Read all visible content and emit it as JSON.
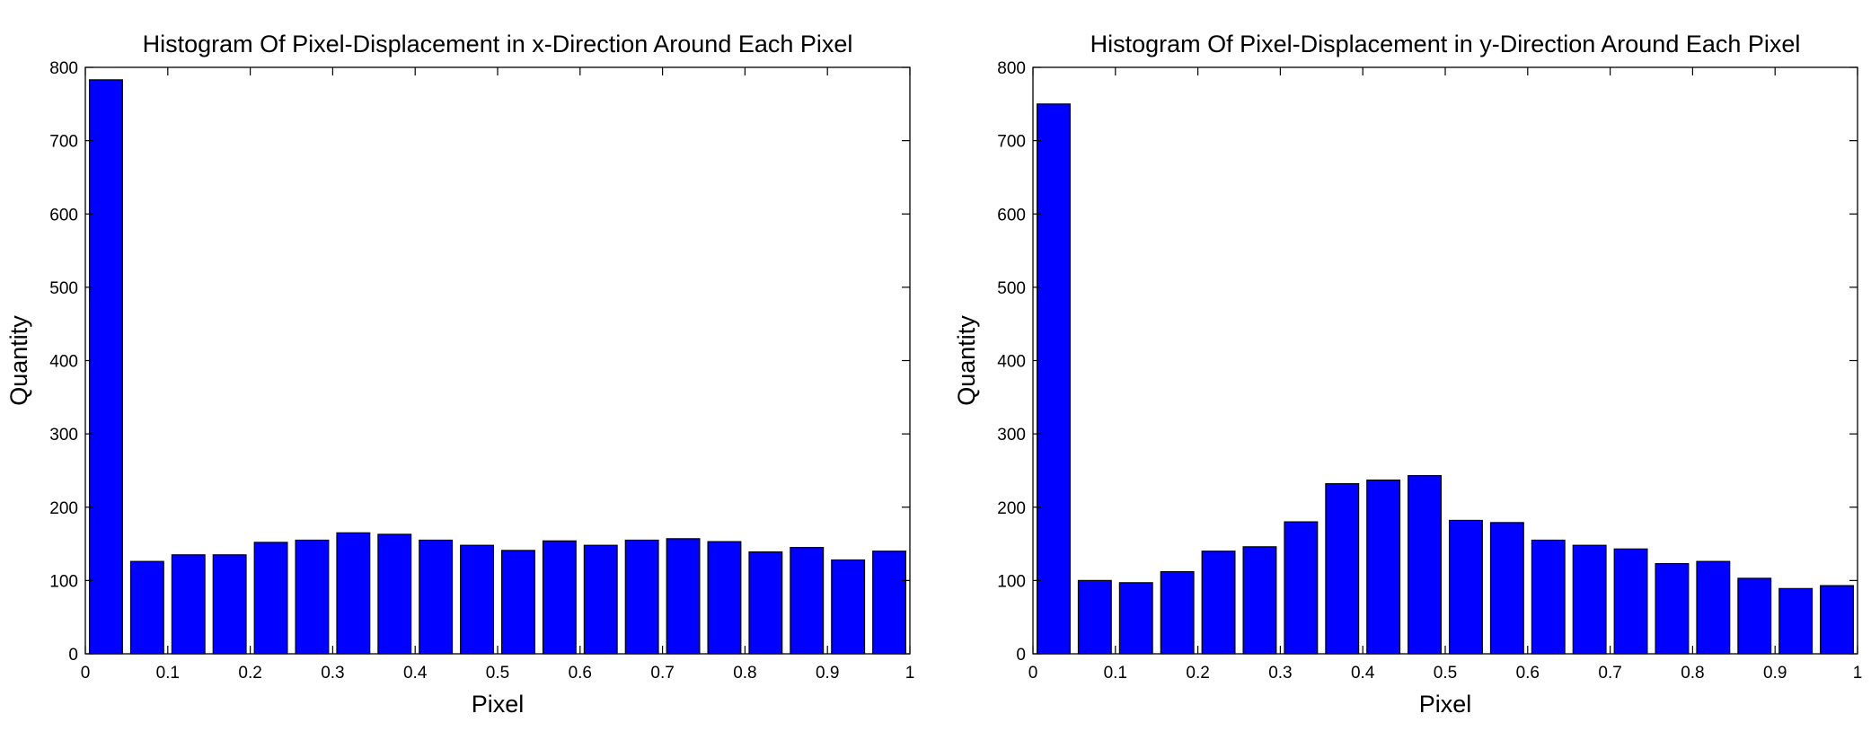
{
  "chart_data": [
    {
      "type": "bar",
      "title": "Histogram Of Pixel-Displacement in x-Direction Around Each Pixel",
      "xlabel": "Pixel",
      "ylabel": "Quantity",
      "xlim": [
        0,
        1
      ],
      "ylim": [
        0,
        800
      ],
      "x": [
        0.025,
        0.075,
        0.125,
        0.175,
        0.225,
        0.275,
        0.325,
        0.375,
        0.425,
        0.475,
        0.525,
        0.575,
        0.625,
        0.675,
        0.725,
        0.775,
        0.825,
        0.875,
        0.925,
        0.975
      ],
      "values": [
        783,
        126,
        135,
        135,
        152,
        155,
        165,
        163,
        155,
        148,
        141,
        154,
        148,
        155,
        157,
        153,
        139,
        145,
        128,
        140
      ],
      "bin_width": 0.05,
      "color": "#0000ff",
      "xticks": [
        "0",
        "0.1",
        "0.2",
        "0.3",
        "0.4",
        "0.5",
        "0.6",
        "0.7",
        "0.8",
        "0.9",
        "1"
      ],
      "yticks": [
        "0",
        "100",
        "200",
        "300",
        "400",
        "500",
        "600",
        "700",
        "800"
      ],
      "grid": false
    },
    {
      "type": "bar",
      "title": "Histogram Of Pixel-Displacement in y-Direction Around Each Pixel",
      "xlabel": "Pixel",
      "ylabel": "Quantity",
      "xlim": [
        0,
        1
      ],
      "ylim": [
        0,
        800
      ],
      "x": [
        0.025,
        0.075,
        0.125,
        0.175,
        0.225,
        0.275,
        0.325,
        0.375,
        0.425,
        0.475,
        0.525,
        0.575,
        0.625,
        0.675,
        0.725,
        0.775,
        0.825,
        0.875,
        0.925,
        0.975
      ],
      "values": [
        750,
        100,
        97,
        112,
        140,
        146,
        180,
        232,
        237,
        243,
        182,
        179,
        155,
        148,
        143,
        123,
        126,
        103,
        89,
        93
      ],
      "bin_width": 0.05,
      "color": "#0000ff",
      "xticks": [
        "0",
        "0.1",
        "0.2",
        "0.3",
        "0.4",
        "0.5",
        "0.6",
        "0.7",
        "0.8",
        "0.9",
        "1"
      ],
      "yticks": [
        "0",
        "100",
        "200",
        "300",
        "400",
        "500",
        "600",
        "700",
        "800"
      ],
      "grid": false
    }
  ]
}
